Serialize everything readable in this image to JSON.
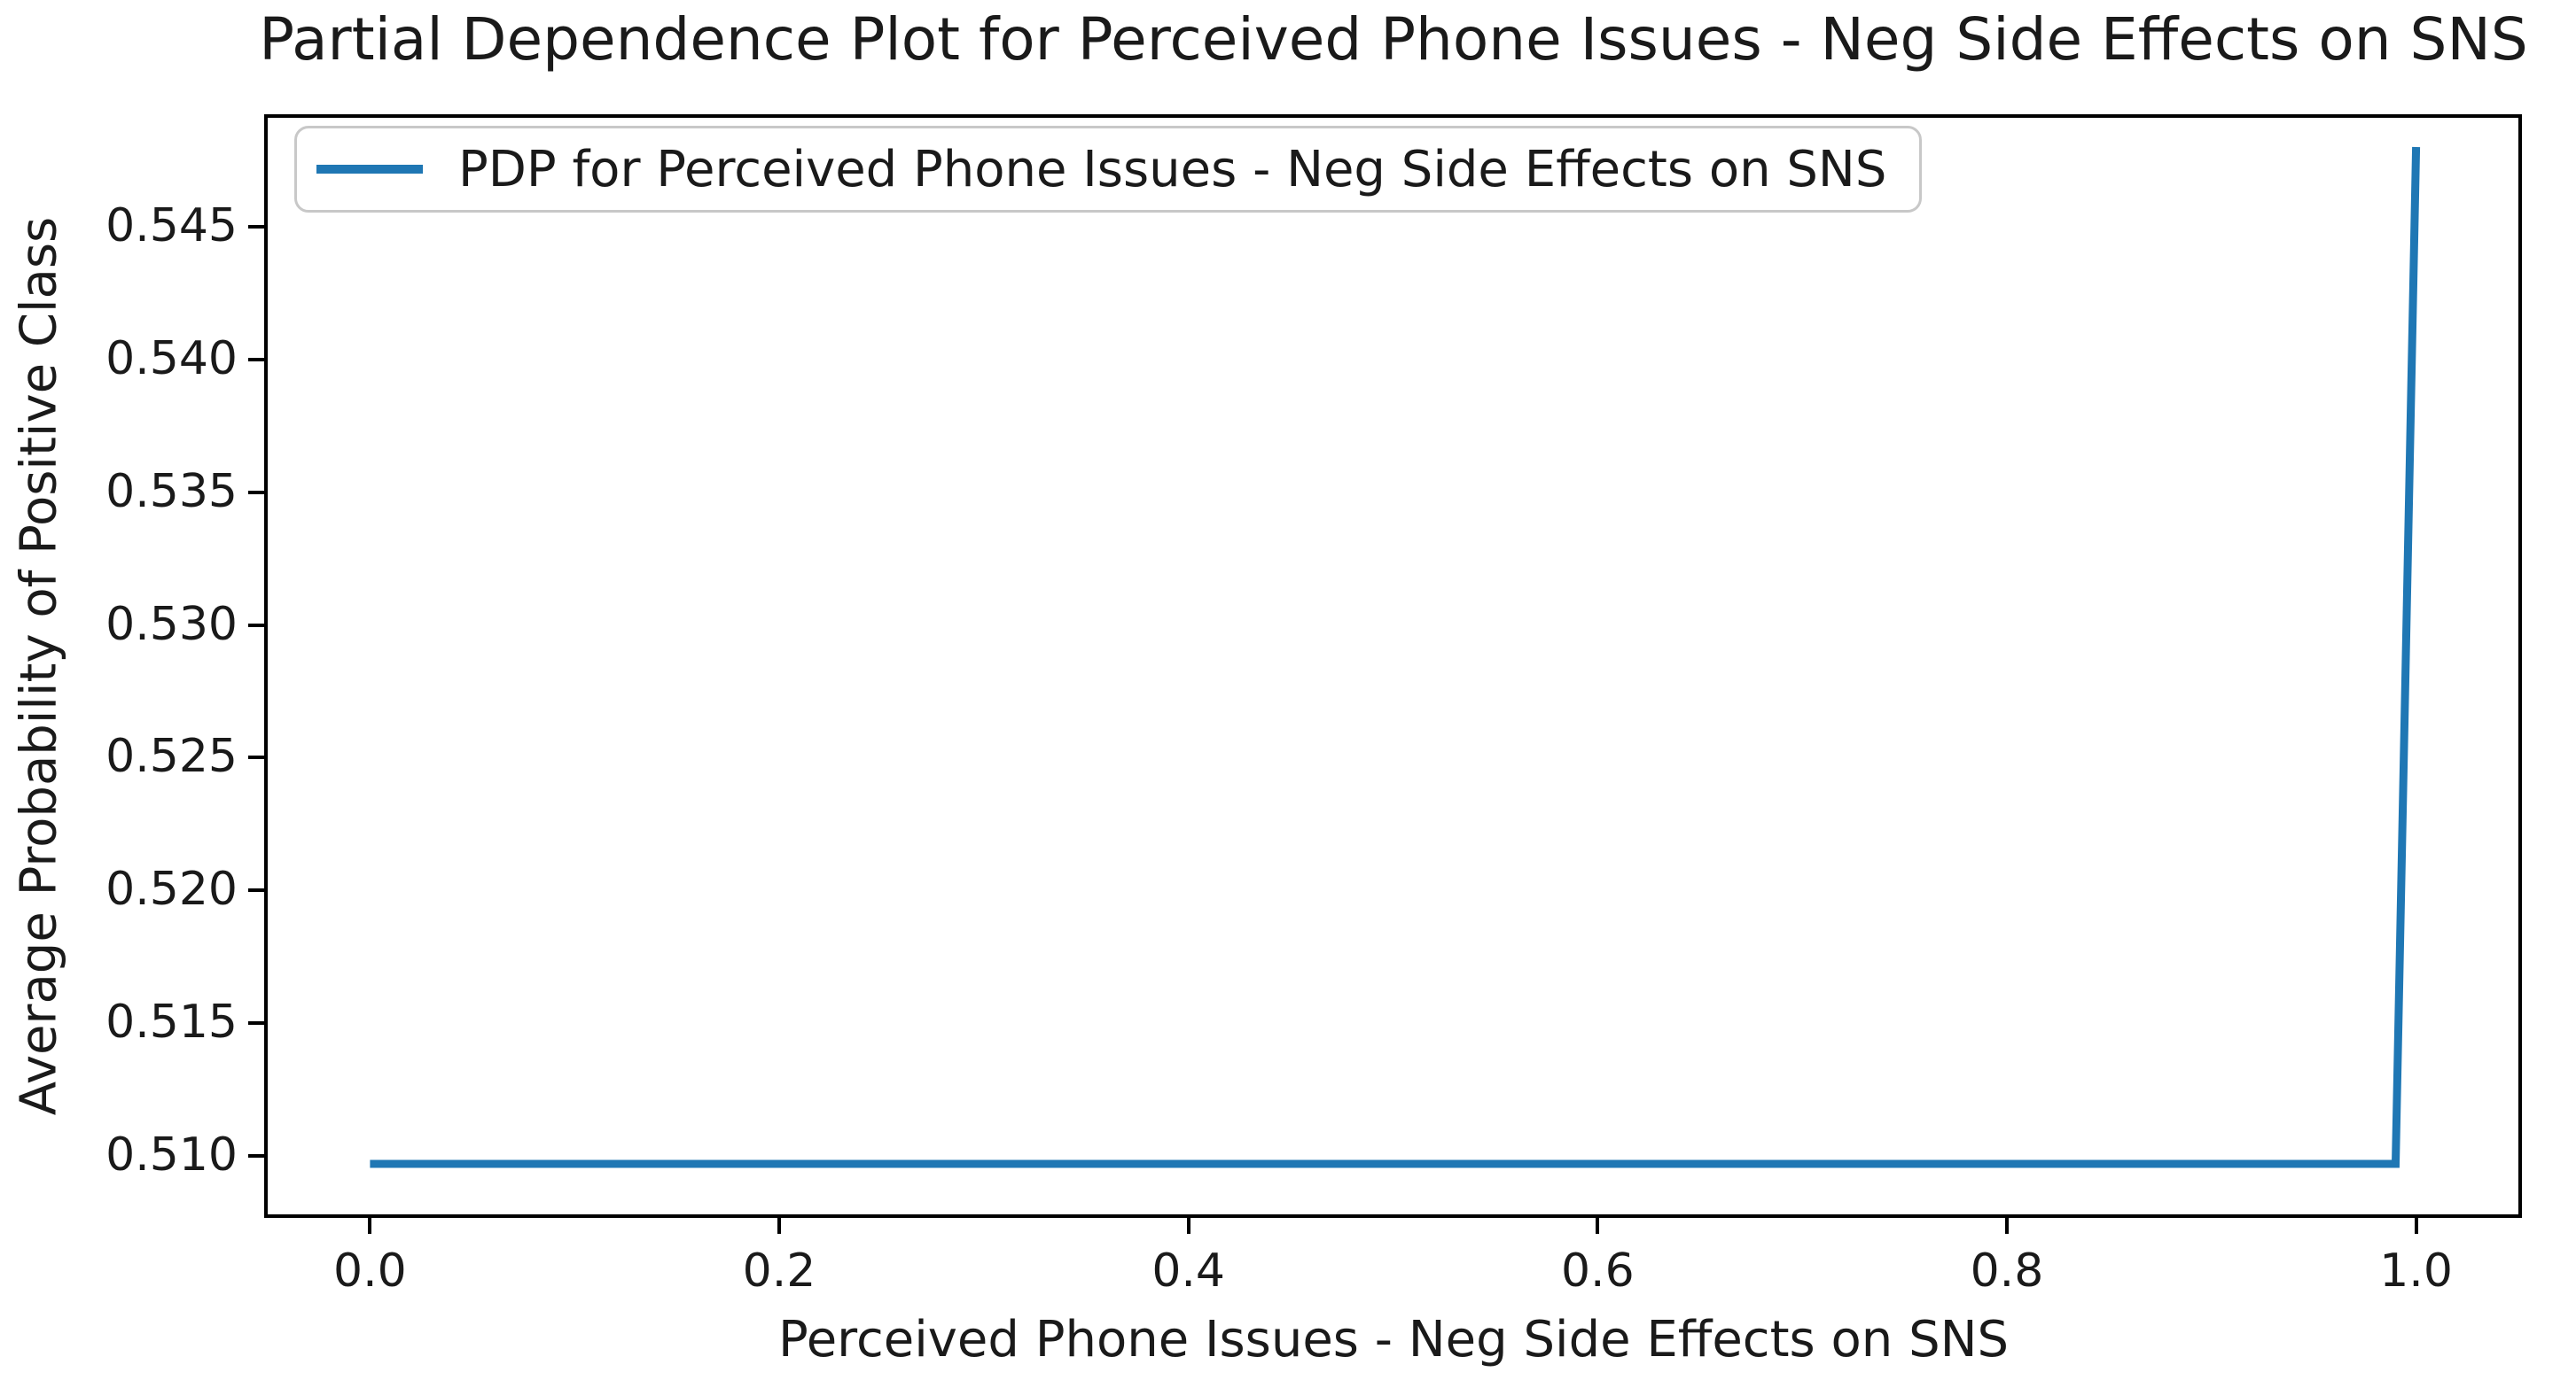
{
  "figure": {
    "background_color": "#ffffff",
    "text_color": "#1a1a1a",
    "spine_color": "#000000"
  },
  "chart_data": {
    "type": "line",
    "title": "Partial Dependence Plot for Perceived Phone Issues - Neg Side Effects on SNS",
    "xlabel": "Perceived Phone Issues - Neg Side Effects on SNS",
    "ylabel": "Average Probability of Positive Class",
    "xlim": [
      -0.05,
      1.05
    ],
    "ylim": [
      0.5078,
      0.5491
    ],
    "grid": false,
    "xticks": {
      "values": [
        0.0,
        0.2,
        0.4,
        0.6,
        0.8,
        1.0
      ],
      "labels": [
        "0.0",
        "0.2",
        "0.4",
        "0.6",
        "0.8",
        "1.0"
      ]
    },
    "yticks": {
      "values": [
        0.51,
        0.515,
        0.52,
        0.525,
        0.53,
        0.535,
        0.54,
        0.545
      ],
      "labels": [
        "0.510",
        "0.515",
        "0.520",
        "0.525",
        "0.530",
        "0.535",
        "0.540",
        "0.545"
      ]
    },
    "legend": {
      "position": "upper-left",
      "entries": [
        {
          "label": "PDP for Perceived Phone Issues - Neg Side Effects on SNS",
          "color": "#1f77b4",
          "swatch": "line-icon"
        }
      ]
    },
    "series": [
      {
        "name": "PDP for Perceived Phone Issues - Neg Side Effects on SNS",
        "color": "#1f77b4",
        "line_width": 9,
        "x": [
          0.0,
          0.2,
          0.4,
          0.6,
          0.8,
          0.99,
          1.0
        ],
        "y": [
          0.5097,
          0.5097,
          0.5097,
          0.5097,
          0.5097,
          0.5097,
          0.548
        ]
      }
    ]
  }
}
